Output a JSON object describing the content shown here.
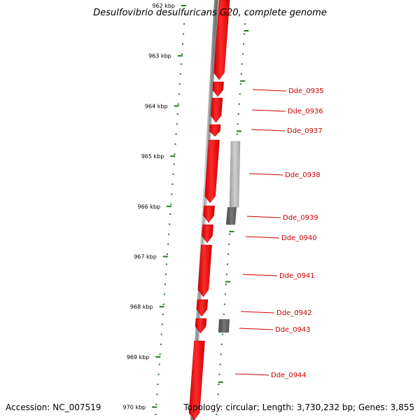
{
  "header": {
    "title": "Desulfovibrio desulfuricans G20, complete genome"
  },
  "footer": {
    "accession": "Accession: NC_007519",
    "summary": "Topology: circular; Length: 3,730,232 bp; Genes: 3,855"
  },
  "colors": {
    "gene_forward": "#ff0000",
    "gene_feature_gray": "#777777",
    "backbone": "#777777",
    "tick_green": "#1a7a1a",
    "label_red": "#cc0000"
  },
  "scale": {
    "unit": "kbp",
    "ticks": [
      {
        "label": "962 kbp"
      },
      {
        "label": "963 kbp"
      },
      {
        "label": "964 kbp"
      },
      {
        "label": "965 kbp"
      },
      {
        "label": "966 kbp"
      },
      {
        "label": "967 kbp"
      },
      {
        "label": "968 kbp"
      },
      {
        "label": "969 kbp"
      },
      {
        "label": "970 kbp"
      }
    ]
  },
  "genes": [
    {
      "label": "Dde_0935"
    },
    {
      "label": "Dde_0936"
    },
    {
      "label": "Dde_0937"
    },
    {
      "label": "Dde_0938"
    },
    {
      "label": "Dde_0939"
    },
    {
      "label": "Dde_0940"
    },
    {
      "label": "Dde_0941"
    },
    {
      "label": "Dde_0942"
    },
    {
      "label": "Dde_0943"
    },
    {
      "label": "Dde_0944"
    }
  ]
}
